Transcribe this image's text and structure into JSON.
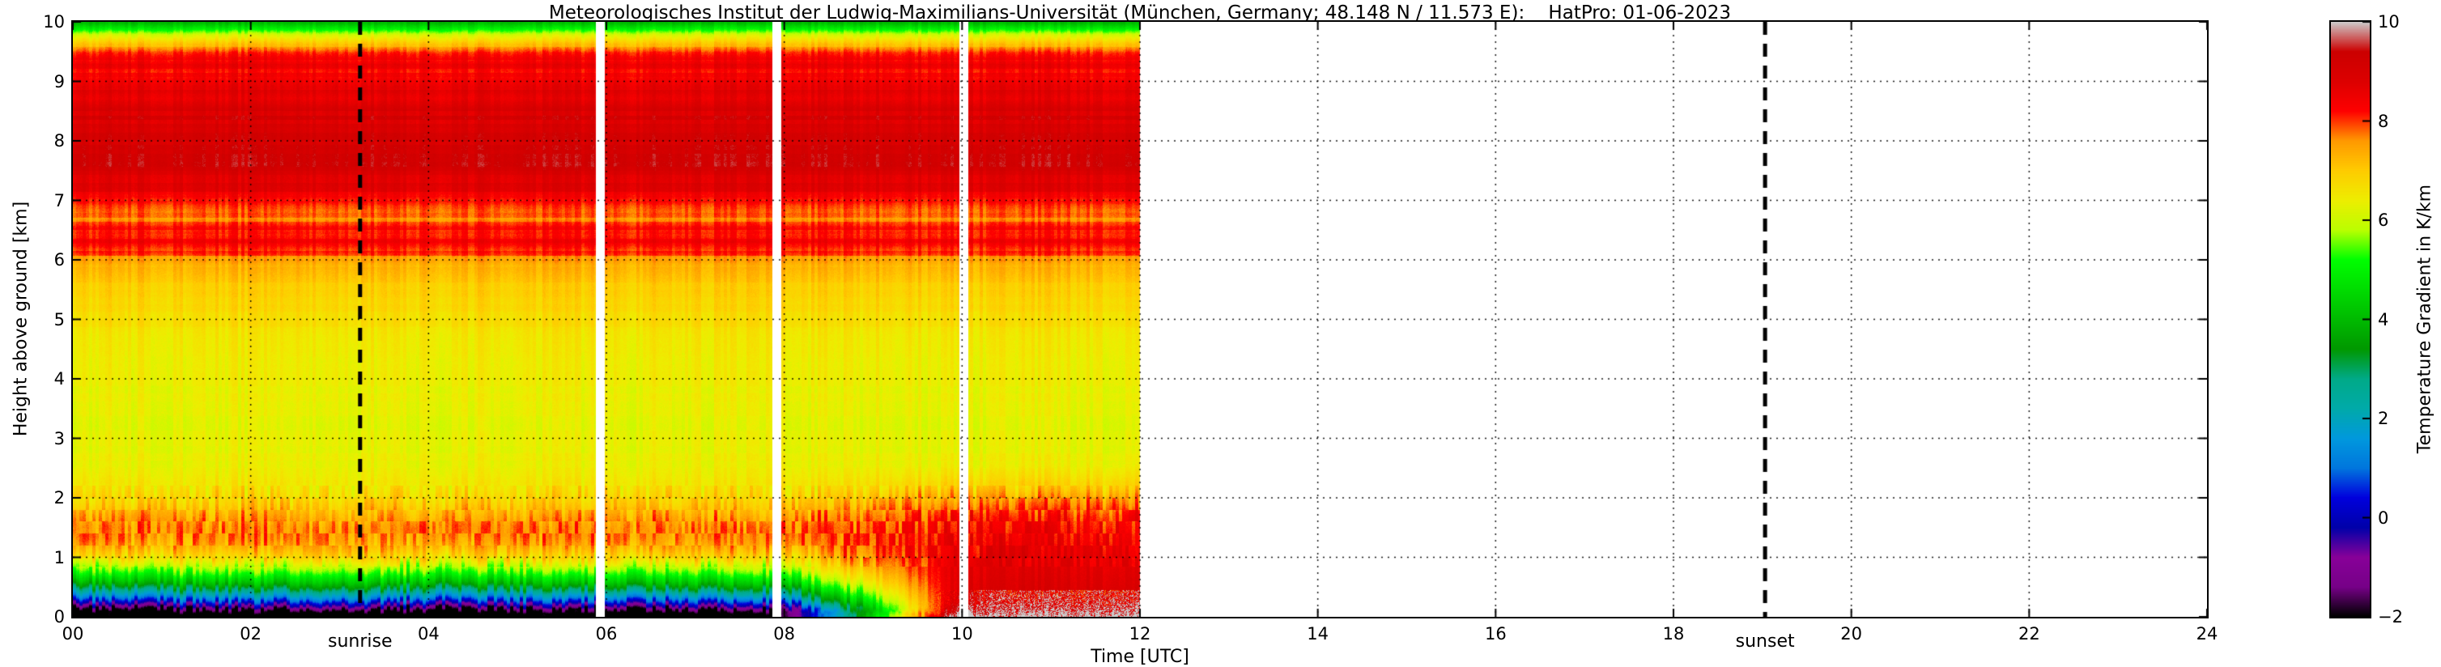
{
  "chart_data": {
    "type": "heatmap",
    "title": "Meteorologisches Institut der Ludwig-Maximilians-Universität (München, Germany; 48.148 N / 11.573 E):    HatPro: 01-06-2023",
    "xlabel": "Time [UTC]",
    "ylabel": "Height above ground [km]",
    "colorbar_label": "Temperature Gradient in K/km",
    "x_range": [
      0,
      24
    ],
    "y_range": [
      0,
      10
    ],
    "value_range": [
      -2,
      10
    ],
    "grid": true,
    "x_tick_values": [
      0,
      2,
      4,
      6,
      8,
      10,
      12,
      14,
      16,
      18,
      20,
      22,
      24
    ],
    "x_tick_labels": [
      "00",
      "02",
      "04",
      "06",
      "08",
      "10",
      "12",
      "14",
      "16",
      "18",
      "20",
      "22",
      "24"
    ],
    "y_tick_values": [
      0,
      1,
      2,
      3,
      4,
      5,
      6,
      7,
      8,
      9,
      10
    ],
    "y_tick_labels": [
      "0",
      "1",
      "2",
      "3",
      "4",
      "5",
      "6",
      "7",
      "8",
      "9",
      "10"
    ],
    "colorbar_tick_values": [
      10,
      8,
      6,
      4,
      2,
      0,
      -2
    ],
    "colorbar_tick_labels": [
      "10",
      "8",
      "6",
      "4",
      "2",
      "0",
      "−2"
    ],
    "data_end_time": 12.0,
    "gap_times": [
      5.93,
      7.92,
      10.02
    ],
    "gap_width": 0.1,
    "annotations": {
      "sunrise": {
        "label": "sunrise",
        "time": 3.23
      },
      "sunset": {
        "label": "sunset",
        "time": 19.03
      }
    },
    "colormap": {
      "name": "nipy_spectral",
      "stops": [
        [
          0.0,
          0.0,
          0.0,
          0.0
        ],
        [
          0.05,
          0.4667,
          0.0,
          0.5333
        ],
        [
          0.1,
          0.5333,
          0.0,
          0.6
        ],
        [
          0.15,
          0.0,
          0.0,
          0.6667
        ],
        [
          0.2,
          0.0,
          0.0,
          0.8667
        ],
        [
          0.25,
          0.0,
          0.4667,
          0.8667
        ],
        [
          0.3,
          0.0,
          0.6,
          0.8667
        ],
        [
          0.35,
          0.0,
          0.6667,
          0.6667
        ],
        [
          0.4,
          0.0,
          0.6667,
          0.5333
        ],
        [
          0.45,
          0.0,
          0.6,
          0.0
        ],
        [
          0.5,
          0.0,
          0.7333,
          0.0
        ],
        [
          0.55,
          0.0,
          0.8667,
          0.0
        ],
        [
          0.6,
          0.0,
          1.0,
          0.0
        ],
        [
          0.65,
          0.7333,
          1.0,
          0.0
        ],
        [
          0.7,
          0.9333,
          0.9333,
          0.0
        ],
        [
          0.75,
          1.0,
          0.8,
          0.0
        ],
        [
          0.8,
          1.0,
          0.6,
          0.0
        ],
        [
          0.85,
          1.0,
          0.0,
          0.0
        ],
        [
          0.9,
          0.8667,
          0.0,
          0.0
        ],
        [
          0.95,
          0.8,
          0.0,
          0.0
        ],
        [
          1.0,
          0.8,
          0.8,
          0.8
        ]
      ]
    },
    "profiles": {
      "early": [
        [
          0.0,
          -2.3
        ],
        [
          0.1,
          -2.2
        ],
        [
          0.13,
          -1.7
        ],
        [
          0.17,
          -1.0
        ],
        [
          0.21,
          -0.3
        ],
        [
          0.26,
          0.5
        ],
        [
          0.31,
          1.2
        ],
        [
          0.37,
          1.9
        ],
        [
          0.44,
          2.7
        ],
        [
          0.52,
          3.6
        ],
        [
          0.6,
          4.3
        ],
        [
          0.7,
          5.0
        ],
        [
          0.8,
          5.7
        ],
        [
          0.9,
          6.2
        ],
        [
          1.0,
          6.8
        ],
        [
          1.15,
          7.3
        ],
        [
          1.3,
          7.6
        ],
        [
          1.5,
          7.7
        ],
        [
          1.7,
          7.4
        ],
        [
          1.9,
          7.0
        ],
        [
          2.1,
          6.7
        ],
        [
          2.4,
          6.45
        ],
        [
          2.8,
          6.35
        ],
        [
          3.2,
          6.3
        ],
        [
          3.6,
          6.35
        ],
        [
          4.0,
          6.4
        ],
        [
          4.4,
          6.5
        ],
        [
          4.8,
          6.6
        ],
        [
          5.2,
          6.8
        ],
        [
          5.6,
          7.0
        ],
        [
          5.9,
          7.3
        ],
        [
          6.1,
          7.9
        ],
        [
          6.3,
          8.5
        ],
        [
          6.5,
          8.2
        ],
        [
          6.7,
          7.7
        ],
        [
          6.9,
          7.9
        ],
        [
          7.1,
          8.6
        ],
        [
          7.3,
          8.9
        ],
        [
          7.6,
          9.1
        ],
        [
          7.9,
          9.1
        ],
        [
          8.2,
          8.9
        ],
        [
          8.5,
          9.0
        ],
        [
          8.7,
          8.4
        ],
        [
          8.9,
          8.7
        ],
        [
          9.1,
          8.2
        ],
        [
          9.3,
          8.5
        ],
        [
          9.5,
          7.8
        ],
        [
          9.65,
          7.0
        ],
        [
          9.78,
          6.1
        ],
        [
          9.88,
          5.0
        ],
        [
          10.0,
          3.8
        ]
      ],
      "late": [
        [
          0.0,
          10.7
        ],
        [
          0.1,
          9.7
        ],
        [
          0.25,
          9.2
        ],
        [
          0.5,
          8.9
        ],
        [
          0.9,
          8.7
        ],
        [
          1.3,
          8.5
        ],
        [
          1.7,
          8.2
        ],
        [
          2.0,
          7.5
        ],
        [
          2.3,
          6.9
        ],
        [
          2.6,
          6.5
        ],
        [
          3.0,
          6.3
        ]
      ],
      "transition_time": [
        7.9,
        10.0
      ],
      "blend_full_below_km": 2.0,
      "blend_zero_above_km": 3.0
    }
  }
}
